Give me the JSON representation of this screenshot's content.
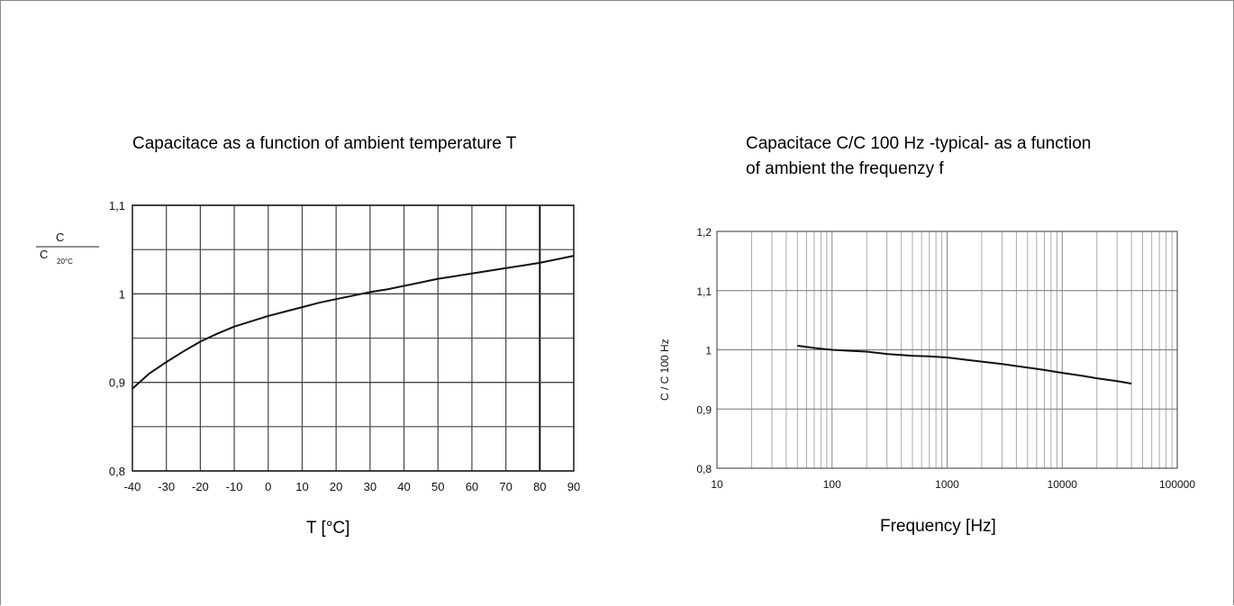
{
  "chart_data": [
    {
      "type": "line",
      "title": "Capacitace as a function of ambient temperature T",
      "xlabel": "T [°C]",
      "ylabel": {
        "numerator": "C",
        "denominator": "C",
        "subscript": "20°C"
      },
      "x_ticks": [
        "-40",
        "-30",
        "-20",
        "-10",
        "0",
        "10",
        "20",
        "30",
        "40",
        "50",
        "60",
        "70",
        "80",
        "90"
      ],
      "y_ticks": [
        "0,8",
        "0,9",
        "1",
        "1,1"
      ],
      "xlim": [
        -40,
        90
      ],
      "ylim": [
        0.8,
        1.1
      ],
      "grid": true,
      "series": [
        {
          "x": [
            -40,
            -35,
            -30,
            -25,
            -20,
            -15,
            -10,
            -5,
            0,
            5,
            10,
            15,
            20,
            25,
            30,
            35,
            40,
            45,
            50,
            55,
            60,
            65,
            70,
            75,
            80,
            85,
            90
          ],
          "y": [
            0.893,
            0.91,
            0.923,
            0.935,
            0.946,
            0.955,
            0.963,
            0.969,
            0.975,
            0.98,
            0.985,
            0.99,
            0.994,
            0.998,
            1.002,
            1.005,
            1.009,
            1.013,
            1.017,
            1.02,
            1.023,
            1.026,
            1.029,
            1.032,
            1.035,
            1.039,
            1.043
          ]
        }
      ]
    },
    {
      "type": "line",
      "title": [
        "Capacitace C/C 100 Hz -typical- as a function",
        "of ambient the frequenzy f"
      ],
      "xlabel": "Frequency [Hz]",
      "ylabel": "C / C 100 Hz",
      "xscale": "log",
      "x_ticks": [
        "10",
        "100",
        "1000",
        "10000",
        "100000"
      ],
      "y_ticks": [
        "0,8",
        "0,9",
        "1",
        "1,1",
        "1,2"
      ],
      "xlim": [
        10,
        100000
      ],
      "ylim": [
        0.8,
        1.2
      ],
      "grid": true,
      "series": [
        {
          "x": [
            50,
            70,
            100,
            150,
            200,
            300,
            500,
            700,
            1000,
            1500,
            2000,
            3000,
            5000,
            7000,
            10000,
            15000,
            20000,
            30000,
            40000
          ],
          "y": [
            1.007,
            1.003,
            1.0,
            0.998,
            0.997,
            0.993,
            0.99,
            0.989,
            0.987,
            0.983,
            0.98,
            0.976,
            0.97,
            0.966,
            0.961,
            0.956,
            0.952,
            0.947,
            0.943
          ]
        }
      ]
    }
  ]
}
